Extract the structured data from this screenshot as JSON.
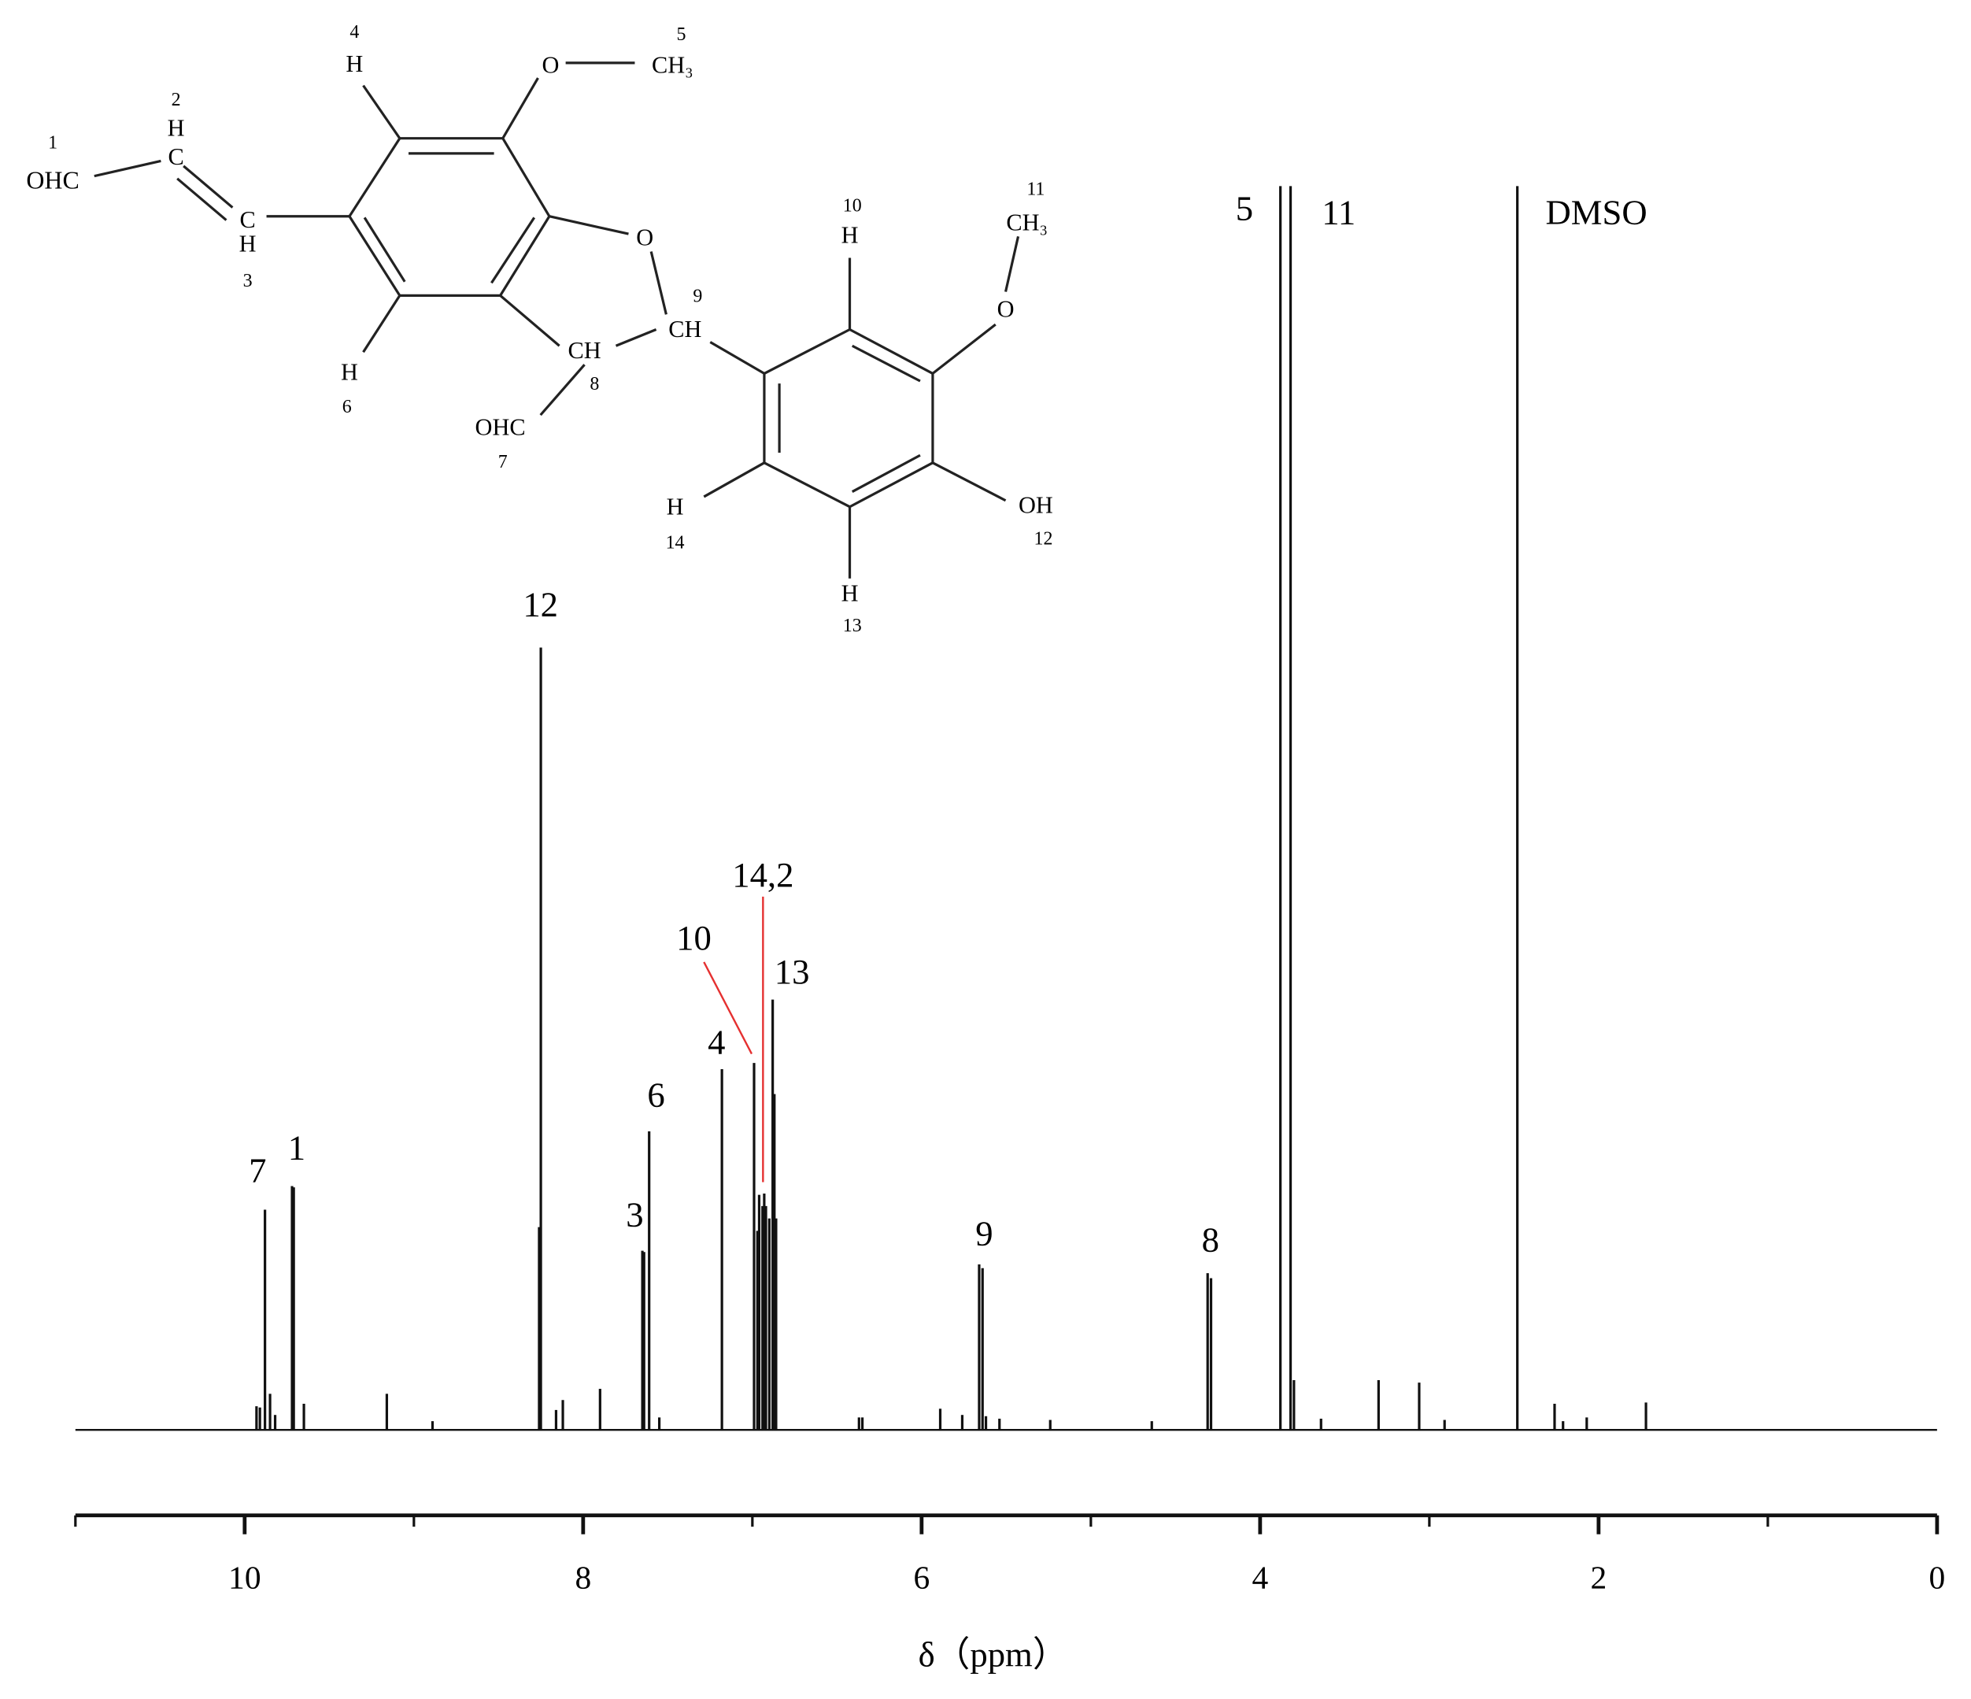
{
  "structure": {
    "labels": [
      "1",
      "OHC",
      "2",
      "H",
      "C",
      "C",
      "H",
      "3",
      "4",
      "H",
      "5",
      "O",
      "CH₃",
      "O",
      "9",
      "CH",
      "CH",
      "8",
      "H",
      "6",
      "OHC",
      "7",
      "10",
      "H",
      "11",
      "CH₃",
      "O",
      "OH",
      "12",
      "H",
      "14",
      "H",
      "13"
    ]
  },
  "chart_data": {
    "type": "spectrum",
    "xlabel": "δ（ppm）",
    "xlim": [
      11,
      0
    ],
    "xticks": [
      10,
      8,
      6,
      4,
      2,
      0
    ],
    "xminorticks": [
      11,
      9,
      7,
      5,
      3,
      1
    ],
    "ylim": [
      0,
      100
    ],
    "color": "#111111",
    "x": [
      9.93,
      9.91,
      9.88,
      9.85,
      9.82,
      9.72,
      9.71,
      9.65,
      9.16,
      8.89,
      8.26,
      8.25,
      8.16,
      8.12,
      7.9,
      7.65,
      7.64,
      7.61,
      7.55,
      7.18,
      6.99,
      6.97,
      6.96,
      6.94,
      6.93,
      6.92,
      6.9,
      6.88,
      6.87,
      6.86,
      6.37,
      6.35,
      5.89,
      5.76,
      5.66,
      5.64,
      5.62,
      5.54,
      5.24,
      4.64,
      4.31,
      4.29,
      3.88,
      3.82,
      3.8,
      3.64,
      3.3,
      3.06,
      2.91,
      2.48,
      2.26,
      2.21,
      2.07,
      1.72
    ],
    "values": [
      1.9,
      1.8,
      17.7,
      2.9,
      1.2,
      19.6,
      19.5,
      2.1,
      2.9,
      0.7,
      16.3,
      62.9,
      1.6,
      2.4,
      3.3,
      14.4,
      14.3,
      24.0,
      1.0,
      29.0,
      29.5,
      16.0,
      18.9,
      18.0,
      19.0,
      18.0,
      17.0,
      34.6,
      27.0,
      17.0,
      1.0,
      1.0,
      1.7,
      1.2,
      13.3,
      13.0,
      1.1,
      0.9,
      0.8,
      0.7,
      12.6,
      12.2,
      100,
      100,
      4.0,
      0.9,
      4.0,
      3.8,
      0.8,
      100,
      2.1,
      0.7,
      1.0,
      2.2
    ],
    "annotations": [
      "7",
      "1",
      "12",
      "3",
      "6",
      "4",
      "10",
      "14,2",
      "13",
      "9",
      "8",
      "5",
      "11",
      "DMSO"
    ]
  }
}
